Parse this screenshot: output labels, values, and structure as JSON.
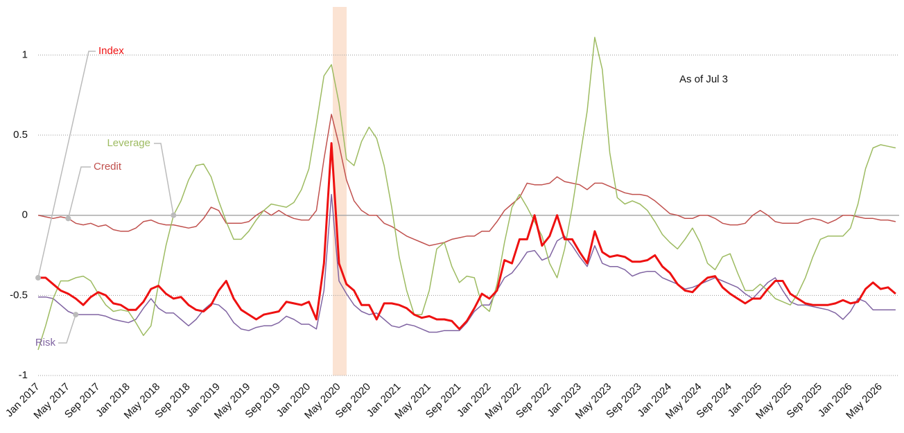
{
  "chart_data": {
    "type": "line",
    "annotation": "As of Jul 3",
    "categories": [
      "Jan 2017",
      null,
      null,
      null,
      "May 2017",
      null,
      null,
      null,
      "Sep 2017",
      null,
      null,
      null,
      "Jan 2018",
      null,
      null,
      null,
      "May 2018",
      null,
      null,
      null,
      "Sep 2018",
      null,
      null,
      null,
      "Jan 2019",
      null,
      null,
      null,
      "May 2019",
      null,
      null,
      null,
      "Sep 2019",
      null,
      null,
      null,
      "Jan 2020",
      null,
      null,
      null,
      "May 2020",
      null,
      null,
      null,
      "Sep 2020",
      null,
      null,
      null,
      "Jan 2021",
      null,
      null,
      null,
      "May 2021",
      null,
      null,
      null,
      "Sep 2021",
      null,
      null,
      null,
      "Jan 2022",
      null,
      null,
      null,
      "May 2022",
      null,
      null,
      null,
      "Sep 2022",
      null,
      null,
      null,
      "Jan 2023",
      null,
      null,
      null,
      "May 2023",
      null,
      null,
      null,
      "Sep 2023",
      null,
      null,
      null,
      "Jan 2024",
      null,
      null,
      null,
      "May 2024",
      null,
      null,
      null,
      "Sep 2024",
      null,
      null,
      null,
      "Jan 2025",
      null,
      null,
      null,
      "May 2025",
      null,
      null,
      null,
      "Sep 2025",
      null,
      null,
      null,
      "Jan 2026",
      null,
      null,
      null,
      "May 2026",
      null,
      null
    ],
    "series": [
      {
        "name": "Index",
        "color": "#ee1111",
        "values": [
          -0.39,
          -0.39,
          -0.43,
          -0.47,
          -0.49,
          -0.52,
          -0.56,
          -0.51,
          -0.48,
          -0.5,
          -0.55,
          -0.56,
          -0.59,
          -0.59,
          -0.54,
          -0.46,
          -0.44,
          -0.49,
          -0.52,
          -0.51,
          -0.56,
          -0.59,
          -0.6,
          -0.56,
          -0.47,
          -0.41,
          -0.52,
          -0.59,
          -0.62,
          -0.65,
          -0.62,
          -0.61,
          -0.6,
          -0.54,
          -0.55,
          -0.56,
          -0.54,
          -0.65,
          -0.3,
          0.45,
          -0.3,
          -0.43,
          -0.47,
          -0.56,
          -0.56,
          -0.65,
          -0.55,
          -0.55,
          -0.56,
          -0.58,
          -0.62,
          -0.64,
          -0.63,
          -0.65,
          -0.65,
          -0.66,
          -0.71,
          -0.66,
          -0.58,
          -0.49,
          -0.52,
          -0.47,
          -0.28,
          -0.3,
          -0.15,
          -0.15,
          0.0,
          -0.19,
          -0.13,
          0.0,
          -0.15,
          -0.15,
          -0.23,
          -0.3,
          -0.1,
          -0.23,
          -0.26,
          -0.25,
          -0.26,
          -0.29,
          -0.29,
          -0.28,
          -0.25,
          -0.32,
          -0.36,
          -0.43,
          -0.47,
          -0.48,
          -0.43,
          -0.39,
          -0.38,
          -0.45,
          -0.49,
          -0.52,
          -0.55,
          -0.52,
          -0.52,
          -0.46,
          -0.41,
          -0.41,
          -0.49,
          -0.52,
          -0.55,
          -0.56,
          -0.56,
          -0.56,
          -0.55,
          -0.53,
          -0.55,
          -0.54,
          -0.46,
          -0.42,
          -0.46,
          -0.45,
          -0.49
        ]
      },
      {
        "name": "Leverage",
        "color": "#9dbb61",
        "values": [
          -0.84,
          -0.69,
          -0.52,
          -0.41,
          -0.41,
          -0.39,
          -0.38,
          -0.41,
          -0.49,
          -0.56,
          -0.6,
          -0.59,
          -0.6,
          -0.67,
          -0.75,
          -0.69,
          -0.43,
          -0.19,
          0.0,
          0.09,
          0.22,
          0.31,
          0.32,
          0.24,
          0.09,
          -0.04,
          -0.15,
          -0.15,
          -0.1,
          -0.03,
          0.03,
          0.07,
          0.06,
          0.05,
          0.08,
          0.16,
          0.29,
          0.57,
          0.87,
          0.94,
          0.7,
          0.35,
          0.31,
          0.46,
          0.55,
          0.48,
          0.31,
          0.05,
          -0.26,
          -0.47,
          -0.62,
          -0.62,
          -0.47,
          -0.21,
          -0.17,
          -0.32,
          -0.42,
          -0.38,
          -0.39,
          -0.56,
          -0.6,
          -0.43,
          -0.17,
          0.05,
          0.13,
          0.05,
          -0.04,
          -0.13,
          -0.3,
          -0.39,
          -0.21,
          0.05,
          0.35,
          0.65,
          1.11,
          0.91,
          0.39,
          0.11,
          0.07,
          0.09,
          0.07,
          0.03,
          -0.04,
          -0.12,
          -0.17,
          -0.21,
          -0.15,
          -0.08,
          -0.17,
          -0.3,
          -0.34,
          -0.26,
          -0.24,
          -0.36,
          -0.47,
          -0.47,
          -0.43,
          -0.47,
          -0.52,
          -0.54,
          -0.56,
          -0.49,
          -0.39,
          -0.26,
          -0.15,
          -0.13,
          -0.13,
          -0.13,
          -0.08,
          0.07,
          0.29,
          0.42,
          0.44,
          0.43,
          0.42
        ]
      },
      {
        "name": "Credit",
        "color": "#c0504d",
        "values": [
          0.0,
          -0.01,
          -0.02,
          -0.01,
          -0.02,
          -0.05,
          -0.06,
          -0.05,
          -0.07,
          -0.06,
          -0.09,
          -0.1,
          -0.1,
          -0.08,
          -0.04,
          -0.03,
          -0.05,
          -0.06,
          -0.06,
          -0.07,
          -0.08,
          -0.07,
          -0.02,
          0.05,
          0.03,
          -0.05,
          -0.05,
          -0.05,
          -0.04,
          0.0,
          0.03,
          0.0,
          0.03,
          0.0,
          -0.02,
          -0.03,
          -0.03,
          0.03,
          0.35,
          0.63,
          0.44,
          0.22,
          0.09,
          0.03,
          0.0,
          0.0,
          -0.05,
          -0.07,
          -0.1,
          -0.13,
          -0.15,
          -0.17,
          -0.19,
          -0.18,
          -0.17,
          -0.15,
          -0.14,
          -0.13,
          -0.13,
          -0.1,
          -0.1,
          -0.04,
          0.03,
          0.07,
          0.11,
          0.2,
          0.19,
          0.19,
          0.2,
          0.24,
          0.21,
          0.2,
          0.19,
          0.16,
          0.2,
          0.2,
          0.18,
          0.16,
          0.14,
          0.13,
          0.13,
          0.12,
          0.09,
          0.05,
          0.01,
          0.0,
          -0.02,
          -0.02,
          0.0,
          0.0,
          -0.02,
          -0.05,
          -0.06,
          -0.06,
          -0.05,
          0.0,
          0.03,
          0.0,
          -0.04,
          -0.05,
          -0.05,
          -0.05,
          -0.03,
          -0.02,
          -0.03,
          -0.05,
          -0.03,
          0.0,
          0.0,
          -0.01,
          -0.02,
          -0.02,
          -0.03,
          -0.03,
          -0.04
        ]
      },
      {
        "name": "Risk",
        "color": "#8064a2",
        "values": [
          -0.51,
          -0.51,
          -0.52,
          -0.56,
          -0.6,
          -0.62,
          -0.62,
          -0.62,
          -0.62,
          -0.63,
          -0.65,
          -0.66,
          -0.67,
          -0.65,
          -0.58,
          -0.52,
          -0.58,
          -0.61,
          -0.61,
          -0.65,
          -0.69,
          -0.65,
          -0.59,
          -0.55,
          -0.56,
          -0.6,
          -0.67,
          -0.71,
          -0.72,
          -0.7,
          -0.69,
          -0.69,
          -0.67,
          -0.63,
          -0.65,
          -0.68,
          -0.68,
          -0.71,
          -0.47,
          0.13,
          -0.41,
          -0.49,
          -0.56,
          -0.6,
          -0.62,
          -0.61,
          -0.65,
          -0.69,
          -0.7,
          -0.68,
          -0.69,
          -0.71,
          -0.73,
          -0.73,
          -0.72,
          -0.72,
          -0.72,
          -0.67,
          -0.6,
          -0.56,
          -0.56,
          -0.47,
          -0.39,
          -0.36,
          -0.3,
          -0.23,
          -0.22,
          -0.28,
          -0.26,
          -0.16,
          -0.13,
          -0.19,
          -0.26,
          -0.32,
          -0.19,
          -0.3,
          -0.32,
          -0.32,
          -0.34,
          -0.38,
          -0.36,
          -0.35,
          -0.35,
          -0.39,
          -0.41,
          -0.43,
          -0.46,
          -0.45,
          -0.43,
          -0.41,
          -0.39,
          -0.41,
          -0.43,
          -0.45,
          -0.49,
          -0.52,
          -0.47,
          -0.42,
          -0.39,
          -0.47,
          -0.54,
          -0.56,
          -0.56,
          -0.57,
          -0.58,
          -0.59,
          -0.61,
          -0.65,
          -0.6,
          -0.52,
          -0.54,
          -0.59,
          -0.59,
          -0.59,
          -0.59
        ]
      }
    ],
    "ylim": [
      -1,
      1.3
    ],
    "yticks": [
      -1,
      -0.5,
      0,
      0.5,
      1
    ],
    "grid": true
  }
}
